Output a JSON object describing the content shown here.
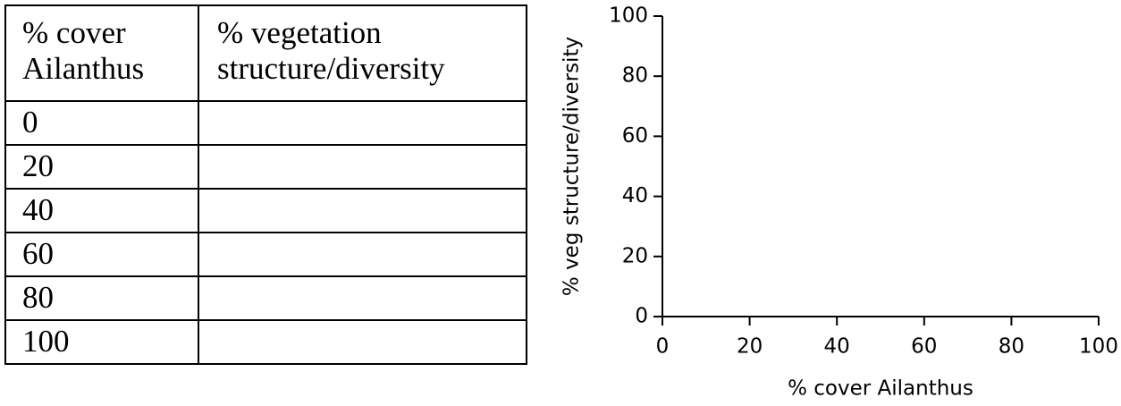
{
  "table": {
    "header": [
      "% cover Ailanthus",
      "% vegetation structure/diversity"
    ],
    "rows": [
      [
        0
      ],
      [
        20
      ],
      [
        40
      ],
      [
        60
      ],
      [
        80
      ],
      [
        100
      ]
    ]
  },
  "chart_data": {
    "type": "scatter",
    "xlabel": "% cover Ailanthus",
    "ylabel": "% veg structure/diversity",
    "xlim": [
      0,
      100
    ],
    "ylim": [
      0,
      100
    ],
    "xticks": [
      0,
      20,
      40,
      60,
      80,
      100
    ],
    "yticks": [
      0,
      20,
      40,
      60,
      80,
      100
    ],
    "grid": false,
    "color": "#000000"
  }
}
